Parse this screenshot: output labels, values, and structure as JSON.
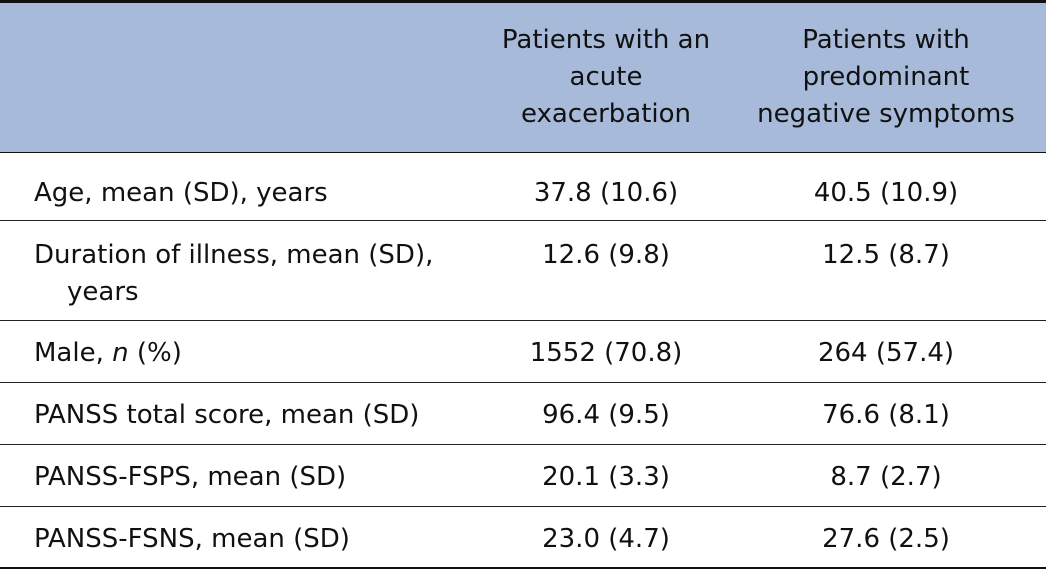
{
  "header": {
    "col1_lines": [
      "Patients with an",
      "acute",
      "exacerbation"
    ],
    "col2_lines": [
      "Patients with",
      "predominant",
      "negative symptoms"
    ]
  },
  "rows": [
    {
      "label_line1": "Age, mean (SD), years",
      "label_line2": "",
      "v1": "37.8 (10.6)",
      "v2": "40.5 (10.9)"
    },
    {
      "label_line1": "Duration of illness, mean (SD),",
      "label_line2": "years",
      "v1": "12.6 (9.8)",
      "v2": "12.5 (8.7)"
    },
    {
      "label_pre": "Male, ",
      "label_italic": "n",
      "label_post": " (%)",
      "v1": "1552 (70.8)",
      "v2": "264 (57.4)"
    },
    {
      "label_line1": "PANSS total score, mean (SD)",
      "label_line2": "",
      "v1": "96.4 (9.5)",
      "v2": "76.6 (8.1)"
    },
    {
      "label_line1": "PANSS-FSPS, mean (SD)",
      "label_line2": "",
      "v1": "20.1 (3.3)",
      "v2": "8.7 (2.7)"
    },
    {
      "label_line1": "PANSS-FSNS, mean (SD)",
      "label_line2": "",
      "v1": "23.0 (4.7)",
      "v2": "27.6 (2.5)"
    }
  ]
}
